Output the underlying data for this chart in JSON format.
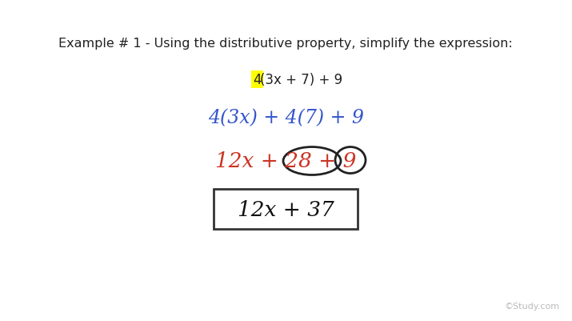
{
  "bg_color": "#ffffff",
  "title_text": "Example # 1 - Using the distributive property, simplify the expression:",
  "title_fontsize": 11.5,
  "title_color": "#222222",
  "line1_text_prefix": "4",
  "line1_text_suffix": "(3x + 7) + 9",
  "line1_fontsize": 12,
  "line1_color": "#222222",
  "line1_highlight_color": "#ffff00",
  "line2_text": "4(3x) + 4(7) + 9",
  "line2_fontsize": 17,
  "line2_color": "#3355cc",
  "line3_fontsize": 19,
  "line3_color": "#cc3322",
  "line4_text": "12x + 37",
  "line4_fontsize": 19,
  "line4_color": "#111111",
  "watermark": "©Study.com",
  "watermark_color": "#bbbbbb",
  "watermark_fontsize": 8
}
